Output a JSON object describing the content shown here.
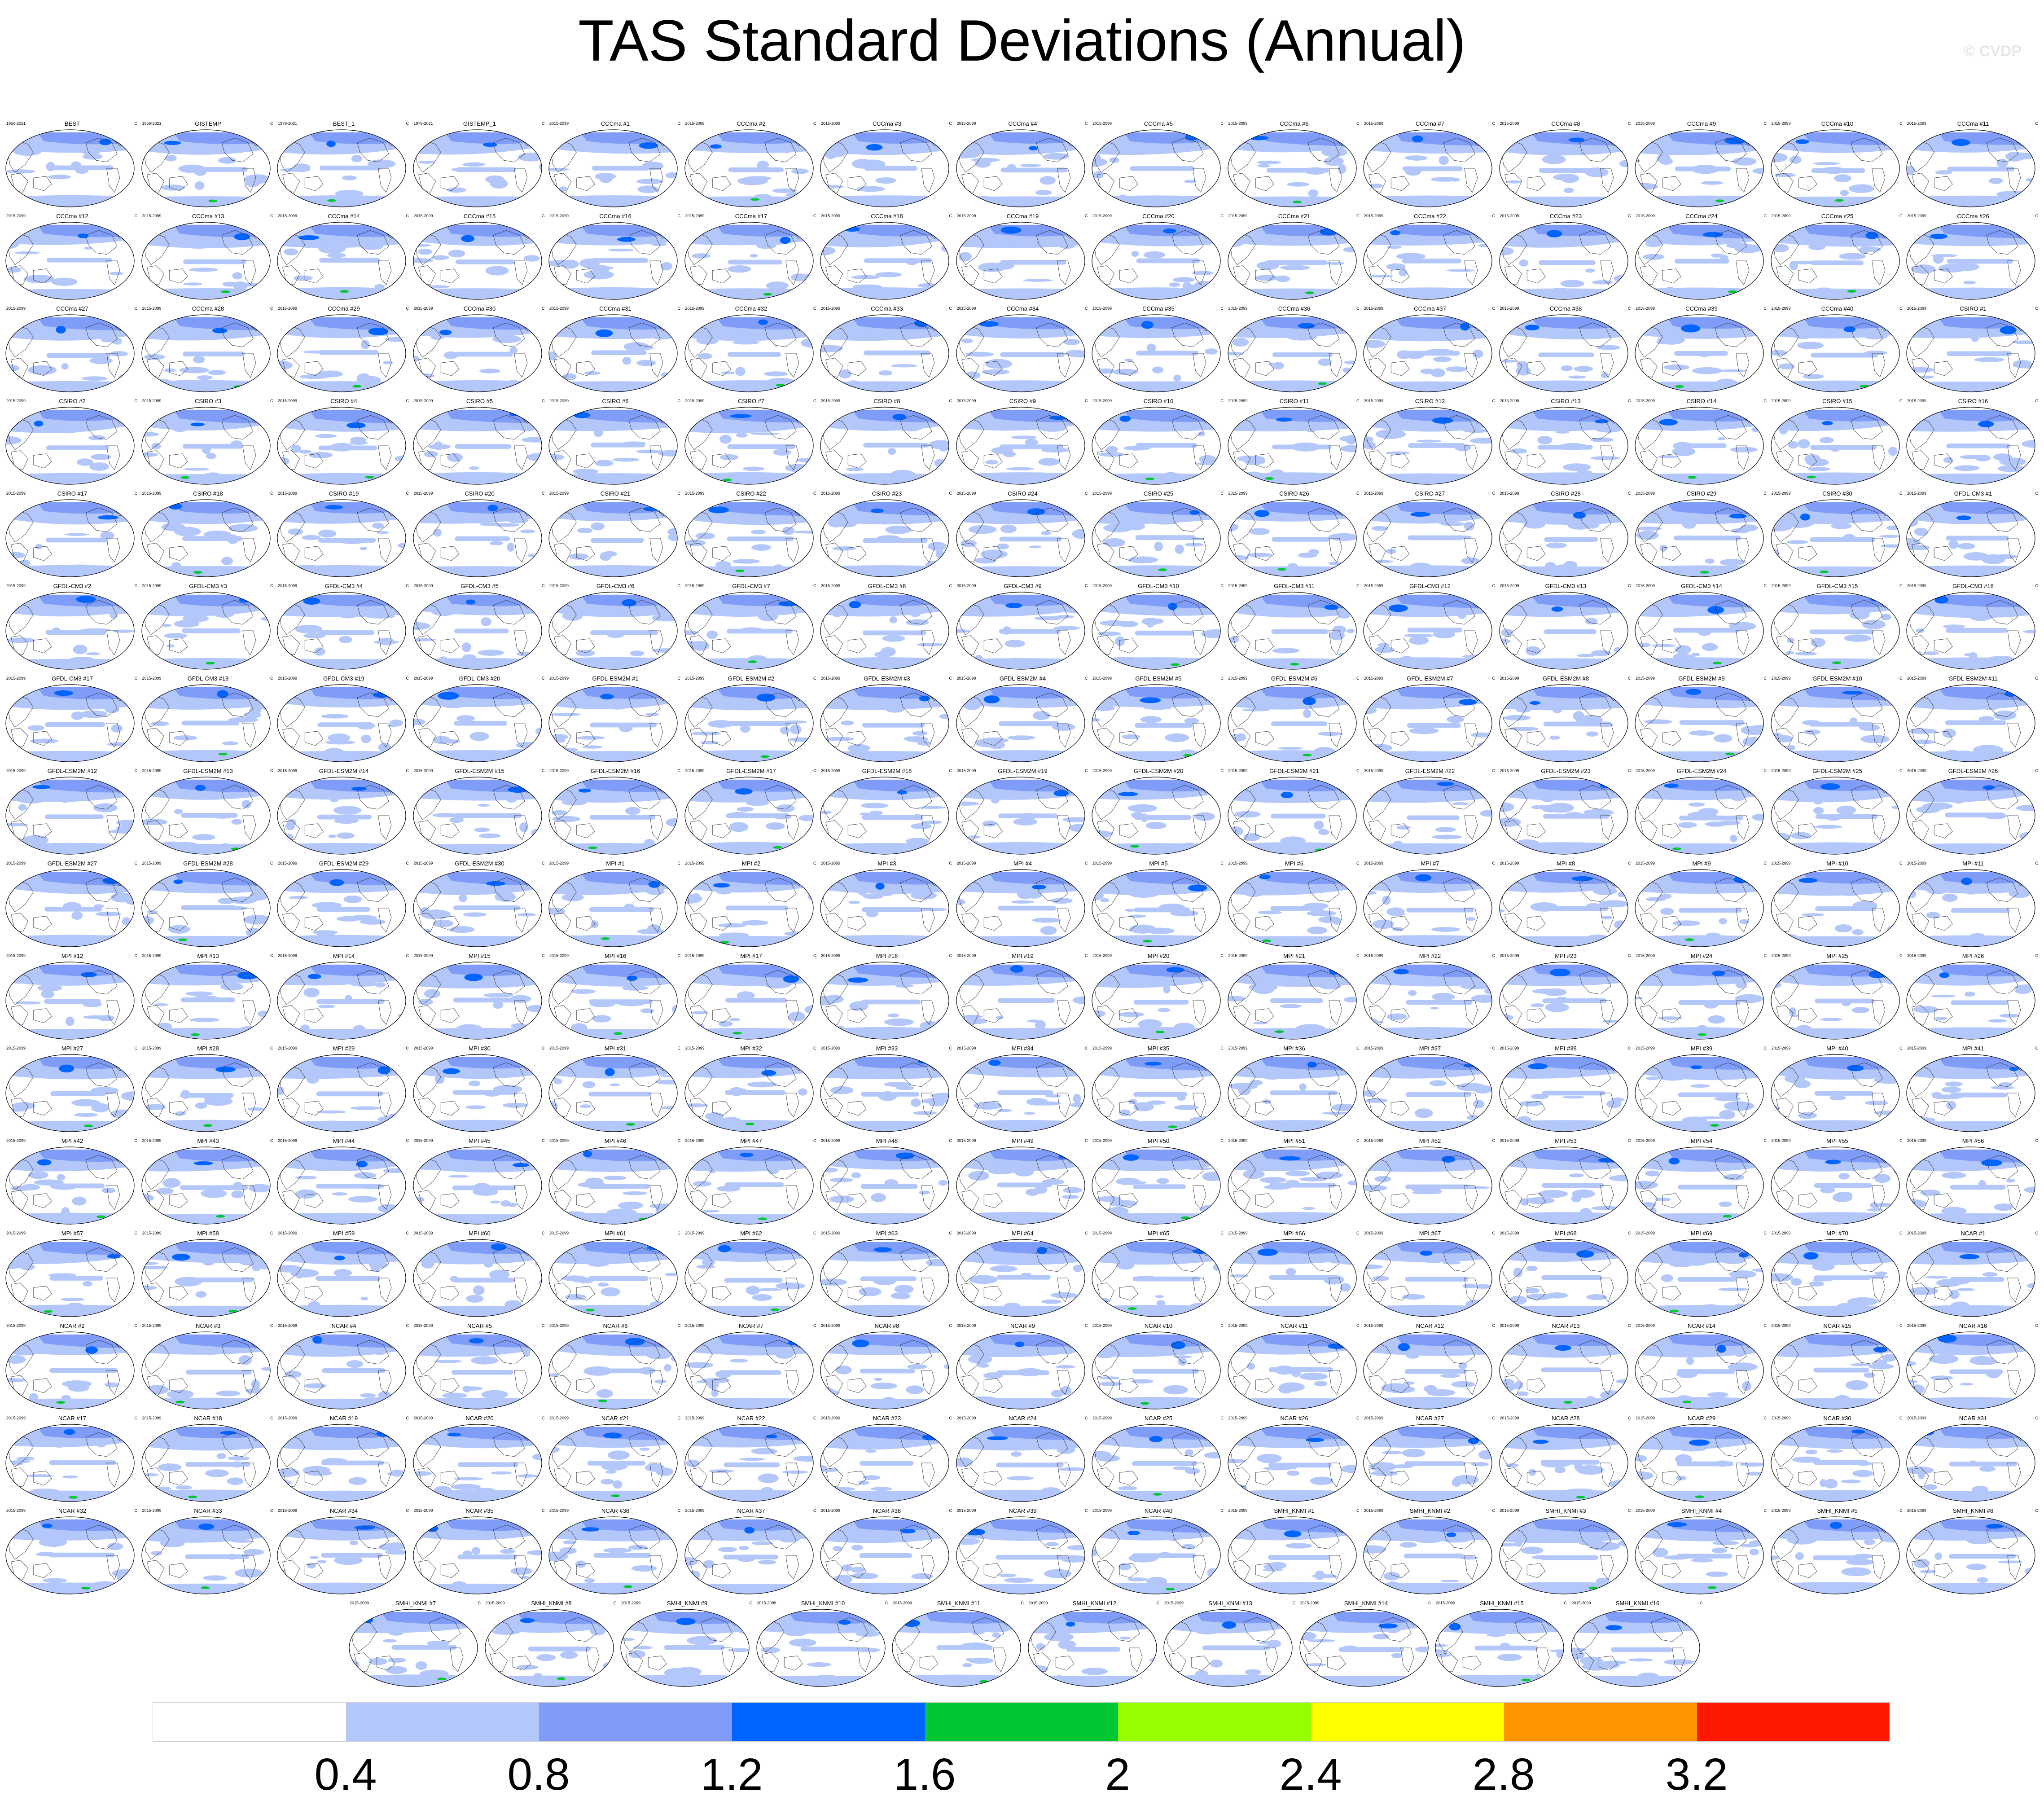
{
  "title": "TAS Standard Deviations (Annual)",
  "watermark": "© CVDP",
  "unit_label": "C",
  "chart_data": {
    "type": "heatmap",
    "title": "TAS Standard Deviations (Annual)",
    "colorbar": {
      "levels": [
        0.4,
        0.8,
        1.2,
        1.6,
        2,
        2.4,
        2.8,
        3.2
      ],
      "tick_labels": [
        "0.4",
        "0.8",
        "1.2",
        "1.6",
        "2",
        "2.4",
        "2.8",
        "3.2"
      ],
      "colors": [
        "#ffffff",
        "#b3c7fa",
        "#7f9cf8",
        "#0064ff",
        "#00c832",
        "#96ff00",
        "#ffff00",
        "#ff9600",
        "#ff1900"
      ]
    },
    "panels": [
      {
        "name": "BEST",
        "years": "1950-2021"
      },
      {
        "name": "GISTEMP",
        "years": "1950-2021"
      },
      {
        "name": "BEST_1",
        "years": "1979-2021"
      },
      {
        "name": "GISTEMP_1",
        "years": "1979-2021"
      },
      {
        "name": "CCCma #1",
        "years": "2015-2099"
      },
      {
        "name": "CCCma #2",
        "years": "2015-2099"
      },
      {
        "name": "CCCma #3",
        "years": "2015-2099"
      },
      {
        "name": "CCCma #4",
        "years": "2015-2099"
      },
      {
        "name": "CCCma #5",
        "years": "2015-2099"
      },
      {
        "name": "CCCma #6",
        "years": "2015-2099"
      },
      {
        "name": "CCCma #7",
        "years": "2015-2099"
      },
      {
        "name": "CCCma #8",
        "years": "2015-2099"
      },
      {
        "name": "CCCma #9",
        "years": "2015-2099"
      },
      {
        "name": "CCCma #10",
        "years": "2015-2099"
      },
      {
        "name": "CCCma #11",
        "years": "2015-2099"
      },
      {
        "name": "CCCma #12",
        "years": "2015-2099"
      },
      {
        "name": "CCCma #13",
        "years": "2015-2099"
      },
      {
        "name": "CCCma #14",
        "years": "2015-2099"
      },
      {
        "name": "CCCma #15",
        "years": "2015-2099"
      },
      {
        "name": "CCCma #16",
        "years": "2015-2099"
      },
      {
        "name": "CCCma #17",
        "years": "2015-2099"
      },
      {
        "name": "CCCma #18",
        "years": "2015-2099"
      },
      {
        "name": "CCCma #19",
        "years": "2015-2099"
      },
      {
        "name": "CCCma #20",
        "years": "2015-2099"
      },
      {
        "name": "CCCma #21",
        "years": "2015-2099"
      },
      {
        "name": "CCCma #22",
        "years": "2015-2099"
      },
      {
        "name": "CCCma #23",
        "years": "2015-2099"
      },
      {
        "name": "CCCma #24",
        "years": "2015-2099"
      },
      {
        "name": "CCCma #25",
        "years": "2015-2099"
      },
      {
        "name": "CCCma #26",
        "years": "2015-2099"
      },
      {
        "name": "CCCma #27",
        "years": "2015-2099"
      },
      {
        "name": "CCCma #28",
        "years": "2015-2099"
      },
      {
        "name": "CCCma #29",
        "years": "2015-2099"
      },
      {
        "name": "CCCma #30",
        "years": "2015-2099"
      },
      {
        "name": "CCCma #31",
        "years": "2015-2099"
      },
      {
        "name": "CCCma #32",
        "years": "2015-2099"
      },
      {
        "name": "CCCma #33",
        "years": "2015-2099"
      },
      {
        "name": "CCCma #34",
        "years": "2015-2099"
      },
      {
        "name": "CCCma #35",
        "years": "2015-2099"
      },
      {
        "name": "CCCma #36",
        "years": "2015-2099"
      },
      {
        "name": "CCCma #37",
        "years": "2015-2099"
      },
      {
        "name": "CCCma #38",
        "years": "2015-2099"
      },
      {
        "name": "CCCma #39",
        "years": "2015-2099"
      },
      {
        "name": "CCCma #40",
        "years": "2015-2099"
      },
      {
        "name": "CSIRO #1",
        "years": "2015-2099"
      },
      {
        "name": "CSIRO #2",
        "years": "2015-2099"
      },
      {
        "name": "CSIRO #3",
        "years": "2015-2099"
      },
      {
        "name": "CSIRO #4",
        "years": "2015-2099"
      },
      {
        "name": "CSIRO #5",
        "years": "2015-2099"
      },
      {
        "name": "CSIRO #6",
        "years": "2015-2099"
      },
      {
        "name": "CSIRO #7",
        "years": "2015-2099"
      },
      {
        "name": "CSIRO #8",
        "years": "2015-2099"
      },
      {
        "name": "CSIRO #9",
        "years": "2015-2099"
      },
      {
        "name": "CSIRO #10",
        "years": "2015-2099"
      },
      {
        "name": "CSIRO #11",
        "years": "2015-2099"
      },
      {
        "name": "CSIRO #12",
        "years": "2015-2099"
      },
      {
        "name": "CSIRO #13",
        "years": "2015-2099"
      },
      {
        "name": "CSIRO #14",
        "years": "2015-2099"
      },
      {
        "name": "CSIRO #15",
        "years": "2015-2099"
      },
      {
        "name": "CSIRO #16",
        "years": "2015-2099"
      },
      {
        "name": "CSIRO #17",
        "years": "2015-2099"
      },
      {
        "name": "CSIRO #18",
        "years": "2015-2099"
      },
      {
        "name": "CSIRO #19",
        "years": "2015-2099"
      },
      {
        "name": "CSIRO #20",
        "years": "2015-2099"
      },
      {
        "name": "CSIRO #21",
        "years": "2015-2099"
      },
      {
        "name": "CSIRO #22",
        "years": "2015-2099"
      },
      {
        "name": "CSIRO #23",
        "years": "2015-2099"
      },
      {
        "name": "CSIRO #24",
        "years": "2015-2099"
      },
      {
        "name": "CSIRO #25",
        "years": "2015-2099"
      },
      {
        "name": "CSIRO #26",
        "years": "2015-2099"
      },
      {
        "name": "CSIRO #27",
        "years": "2015-2099"
      },
      {
        "name": "CSIRO #28",
        "years": "2015-2099"
      },
      {
        "name": "CSIRO #29",
        "years": "2015-2099"
      },
      {
        "name": "CSIRO #30",
        "years": "2015-2099"
      },
      {
        "name": "GFDL-CM3 #1",
        "years": "2015-2099"
      },
      {
        "name": "GFDL-CM3 #2",
        "years": "2015-2099"
      },
      {
        "name": "GFDL-CM3 #3",
        "years": "2015-2099"
      },
      {
        "name": "GFDL-CM3 #4",
        "years": "2015-2099"
      },
      {
        "name": "GFDL-CM3 #5",
        "years": "2015-2099"
      },
      {
        "name": "GFDL-CM3 #6",
        "years": "2015-2099"
      },
      {
        "name": "GFDL-CM3 #7",
        "years": "2015-2099"
      },
      {
        "name": "GFDL-CM3 #8",
        "years": "2015-2099"
      },
      {
        "name": "GFDL-CM3 #9",
        "years": "2015-2099"
      },
      {
        "name": "GFDL-CM3 #10",
        "years": "2015-2099"
      },
      {
        "name": "GFDL-CM3 #11",
        "years": "2015-2099"
      },
      {
        "name": "GFDL-CM3 #12",
        "years": "2015-2099"
      },
      {
        "name": "GFDL-CM3 #13",
        "years": "2015-2099"
      },
      {
        "name": "GFDL-CM3 #14",
        "years": "2015-2099"
      },
      {
        "name": "GFDL-CM3 #15",
        "years": "2015-2099"
      },
      {
        "name": "GFDL-CM3 #16",
        "years": "2015-2099"
      },
      {
        "name": "GFDL-CM3 #17",
        "years": "2015-2099"
      },
      {
        "name": "GFDL-CM3 #18",
        "years": "2015-2099"
      },
      {
        "name": "GFDL-CM3 #19",
        "years": "2015-2099"
      },
      {
        "name": "GFDL-CM3 #20",
        "years": "2015-2099"
      },
      {
        "name": "GFDL-ESM2M #1",
        "years": "2015-2099"
      },
      {
        "name": "GFDL-ESM2M #2",
        "years": "2015-2099"
      },
      {
        "name": "GFDL-ESM2M #3",
        "years": "2015-2099"
      },
      {
        "name": "GFDL-ESM2M #4",
        "years": "2015-2099"
      },
      {
        "name": "GFDL-ESM2M #5",
        "years": "2015-2099"
      },
      {
        "name": "GFDL-ESM2M #6",
        "years": "2015-2099"
      },
      {
        "name": "GFDL-ESM2M #7",
        "years": "2015-2099"
      },
      {
        "name": "GFDL-ESM2M #8",
        "years": "2015-2099"
      },
      {
        "name": "GFDL-ESM2M #9",
        "years": "2015-2099"
      },
      {
        "name": "GFDL-ESM2M #10",
        "years": "2015-2099"
      },
      {
        "name": "GFDL-ESM2M #11",
        "years": "2015-2099"
      },
      {
        "name": "GFDL-ESM2M #12",
        "years": "2015-2099"
      },
      {
        "name": "GFDL-ESM2M #13",
        "years": "2015-2099"
      },
      {
        "name": "GFDL-ESM2M #14",
        "years": "2015-2099"
      },
      {
        "name": "GFDL-ESM2M #15",
        "years": "2015-2099"
      },
      {
        "name": "GFDL-ESM2M #16",
        "years": "2015-2099"
      },
      {
        "name": "GFDL-ESM2M #17",
        "years": "2015-2099"
      },
      {
        "name": "GFDL-ESM2M #18",
        "years": "2015-2099"
      },
      {
        "name": "GFDL-ESM2M #19",
        "years": "2015-2099"
      },
      {
        "name": "GFDL-ESM2M #20",
        "years": "2015-2099"
      },
      {
        "name": "GFDL-ESM2M #21",
        "years": "2015-2099"
      },
      {
        "name": "GFDL-ESM2M #22",
        "years": "2015-2099"
      },
      {
        "name": "GFDL-ESM2M #23",
        "years": "2015-2099"
      },
      {
        "name": "GFDL-ESM2M #24",
        "years": "2015-2099"
      },
      {
        "name": "GFDL-ESM2M #25",
        "years": "2015-2099"
      },
      {
        "name": "GFDL-ESM2M #26",
        "years": "2015-2099"
      },
      {
        "name": "GFDL-ESM2M #27",
        "years": "2015-2099"
      },
      {
        "name": "GFDL-ESM2M #28",
        "years": "2015-2099"
      },
      {
        "name": "GFDL-ESM2M #29",
        "years": "2015-2099"
      },
      {
        "name": "GFDL-ESM2M #30",
        "years": "2015-2099"
      },
      {
        "name": "MPI #1",
        "years": "2015-2099"
      },
      {
        "name": "MPI #2",
        "years": "2015-2099"
      },
      {
        "name": "MPI #3",
        "years": "2015-2099"
      },
      {
        "name": "MPI #4",
        "years": "2015-2099"
      },
      {
        "name": "MPI #5",
        "years": "2015-2099"
      },
      {
        "name": "MPI #6",
        "years": "2015-2099"
      },
      {
        "name": "MPI #7",
        "years": "2015-2099"
      },
      {
        "name": "MPI #8",
        "years": "2015-2099"
      },
      {
        "name": "MPI #9",
        "years": "2015-2099"
      },
      {
        "name": "MPI #10",
        "years": "2015-2099"
      },
      {
        "name": "MPI #11",
        "years": "2015-2099"
      },
      {
        "name": "MPI #12",
        "years": "2015-2099"
      },
      {
        "name": "MPI #13",
        "years": "2015-2099"
      },
      {
        "name": "MPI #14",
        "years": "2015-2099"
      },
      {
        "name": "MPI #15",
        "years": "2015-2099"
      },
      {
        "name": "MPI #16",
        "years": "2015-2099"
      },
      {
        "name": "MPI #17",
        "years": "2015-2099"
      },
      {
        "name": "MPI #18",
        "years": "2015-2099"
      },
      {
        "name": "MPI #19",
        "years": "2015-2099"
      },
      {
        "name": "MPI #20",
        "years": "2015-2099"
      },
      {
        "name": "MPI #21",
        "years": "2015-2099"
      },
      {
        "name": "MPI #22",
        "years": "2015-2099"
      },
      {
        "name": "MPI #23",
        "years": "2015-2099"
      },
      {
        "name": "MPI #24",
        "years": "2015-2099"
      },
      {
        "name": "MPI #25",
        "years": "2015-2099"
      },
      {
        "name": "MPI #26",
        "years": "2015-2099"
      },
      {
        "name": "MPI #27",
        "years": "2015-2099"
      },
      {
        "name": "MPI #28",
        "years": "2015-2099"
      },
      {
        "name": "MPI #29",
        "years": "2015-2099"
      },
      {
        "name": "MPI #30",
        "years": "2015-2099"
      },
      {
        "name": "MPI #31",
        "years": "2015-2099"
      },
      {
        "name": "MPI #32",
        "years": "2015-2099"
      },
      {
        "name": "MPI #33",
        "years": "2015-2099"
      },
      {
        "name": "MPI #34",
        "years": "2015-2099"
      },
      {
        "name": "MPI #35",
        "years": "2015-2099"
      },
      {
        "name": "MPI #36",
        "years": "2015-2099"
      },
      {
        "name": "MPI #37",
        "years": "2015-2099"
      },
      {
        "name": "MPI #38",
        "years": "2015-2099"
      },
      {
        "name": "MPI #39",
        "years": "2015-2099"
      },
      {
        "name": "MPI #40",
        "years": "2015-2099"
      },
      {
        "name": "MPI #41",
        "years": "2015-2099"
      },
      {
        "name": "MPI #42",
        "years": "2015-2099"
      },
      {
        "name": "MPI #43",
        "years": "2015-2099"
      },
      {
        "name": "MPI #44",
        "years": "2015-2099"
      },
      {
        "name": "MPI #45",
        "years": "2015-2099"
      },
      {
        "name": "MPI #46",
        "years": "2015-2099"
      },
      {
        "name": "MPI #47",
        "years": "2015-2099"
      },
      {
        "name": "MPI #48",
        "years": "2015-2099"
      },
      {
        "name": "MPI #49",
        "years": "2015-2099"
      },
      {
        "name": "MPI #50",
        "years": "2015-2099"
      },
      {
        "name": "MPI #51",
        "years": "2015-2099"
      },
      {
        "name": "MPI #52",
        "years": "2015-2099"
      },
      {
        "name": "MPI #53",
        "years": "2015-2099"
      },
      {
        "name": "MPI #54",
        "years": "2015-2099"
      },
      {
        "name": "MPI #55",
        "years": "2015-2099"
      },
      {
        "name": "MPI #56",
        "years": "2015-2099"
      },
      {
        "name": "MPI #57",
        "years": "2015-2099"
      },
      {
        "name": "MPI #58",
        "years": "2015-2099"
      },
      {
        "name": "MPI #59",
        "years": "2015-2099"
      },
      {
        "name": "MPI #60",
        "years": "2015-2099"
      },
      {
        "name": "MPI #61",
        "years": "2015-2099"
      },
      {
        "name": "MPI #62",
        "years": "2015-2099"
      },
      {
        "name": "MPI #63",
        "years": "2015-2099"
      },
      {
        "name": "MPI #64",
        "years": "2015-2099"
      },
      {
        "name": "MPI #65",
        "years": "2015-2099"
      },
      {
        "name": "MPI #66",
        "years": "2015-2099"
      },
      {
        "name": "MPI #67",
        "years": "2015-2099"
      },
      {
        "name": "MPI #68",
        "years": "2015-2099"
      },
      {
        "name": "MPI #69",
        "years": "2015-2099"
      },
      {
        "name": "MPI #70",
        "years": "2015-2099"
      },
      {
        "name": "NCAR #1",
        "years": "2015-2099"
      },
      {
        "name": "NCAR #2",
        "years": "2015-2099"
      },
      {
        "name": "NCAR #3",
        "years": "2015-2099"
      },
      {
        "name": "NCAR #4",
        "years": "2015-2099"
      },
      {
        "name": "NCAR #5",
        "years": "2015-2099"
      },
      {
        "name": "NCAR #6",
        "years": "2015-2099"
      },
      {
        "name": "NCAR #7",
        "years": "2015-2099"
      },
      {
        "name": "NCAR #8",
        "years": "2015-2099"
      },
      {
        "name": "NCAR #9",
        "years": "2015-2099"
      },
      {
        "name": "NCAR #10",
        "years": "2015-2099"
      },
      {
        "name": "NCAR #11",
        "years": "2015-2099"
      },
      {
        "name": "NCAR #12",
        "years": "2015-2099"
      },
      {
        "name": "NCAR #13",
        "years": "2015-2099"
      },
      {
        "name": "NCAR #14",
        "years": "2015-2099"
      },
      {
        "name": "NCAR #15",
        "years": "2015-2099"
      },
      {
        "name": "NCAR #16",
        "years": "2015-2099"
      },
      {
        "name": "NCAR #17",
        "years": "2015-2099"
      },
      {
        "name": "NCAR #18",
        "years": "2015-2099"
      },
      {
        "name": "NCAR #19",
        "years": "2015-2099"
      },
      {
        "name": "NCAR #20",
        "years": "2015-2099"
      },
      {
        "name": "NCAR #21",
        "years": "2015-2099"
      },
      {
        "name": "NCAR #22",
        "years": "2015-2099"
      },
      {
        "name": "NCAR #23",
        "years": "2015-2099"
      },
      {
        "name": "NCAR #24",
        "years": "2015-2099"
      },
      {
        "name": "NCAR #25",
        "years": "2015-2099"
      },
      {
        "name": "NCAR #26",
        "years": "2015-2099"
      },
      {
        "name": "NCAR #27",
        "years": "2015-2099"
      },
      {
        "name": "NCAR #28",
        "years": "2015-2099"
      },
      {
        "name": "NCAR #29",
        "years": "2015-2099"
      },
      {
        "name": "NCAR #30",
        "years": "2015-2099"
      },
      {
        "name": "NCAR #31",
        "years": "2015-2099"
      },
      {
        "name": "NCAR #32",
        "years": "2015-2099"
      },
      {
        "name": "NCAR #33",
        "years": "2015-2099"
      },
      {
        "name": "NCAR #34",
        "years": "2015-2099"
      },
      {
        "name": "NCAR #35",
        "years": "2015-2099"
      },
      {
        "name": "NCAR #36",
        "years": "2015-2099"
      },
      {
        "name": "NCAR #37",
        "years": "2015-2099"
      },
      {
        "name": "NCAR #38",
        "years": "2015-2099"
      },
      {
        "name": "NCAR #39",
        "years": "2015-2099"
      },
      {
        "name": "NCAR #40",
        "years": "2015-2099"
      },
      {
        "name": "SMHI_KNMI #1",
        "years": "2015-2099"
      },
      {
        "name": "SMHI_KNMI #2",
        "years": "2015-2099"
      },
      {
        "name": "SMHI_KNMI #3",
        "years": "2015-2099"
      },
      {
        "name": "SMHI_KNMI #4",
        "years": "2015-2099"
      },
      {
        "name": "SMHI_KNMI #5",
        "years": "2015-2099"
      },
      {
        "name": "SMHI_KNMI #6",
        "years": "2015-2099"
      },
      {
        "name": "SMHI_KNMI #7",
        "years": "2015-2099"
      },
      {
        "name": "SMHI_KNMI #8",
        "years": "2015-2099"
      },
      {
        "name": "SMHI_KNMI #9",
        "years": "2015-2099"
      },
      {
        "name": "SMHI_KNMI #10",
        "years": "2015-2099"
      },
      {
        "name": "SMHI_KNMI #11",
        "years": "2015-2099"
      },
      {
        "name": "SMHI_KNMI #12",
        "years": "2015-2099"
      },
      {
        "name": "SMHI_KNMI #13",
        "years": "2015-2099"
      },
      {
        "name": "SMHI_KNMI #14",
        "years": "2015-2099"
      },
      {
        "name": "SMHI_KNMI #15",
        "years": "2015-2099"
      },
      {
        "name": "SMHI_KNMI #16",
        "years": "2015-2099"
      }
    ]
  }
}
